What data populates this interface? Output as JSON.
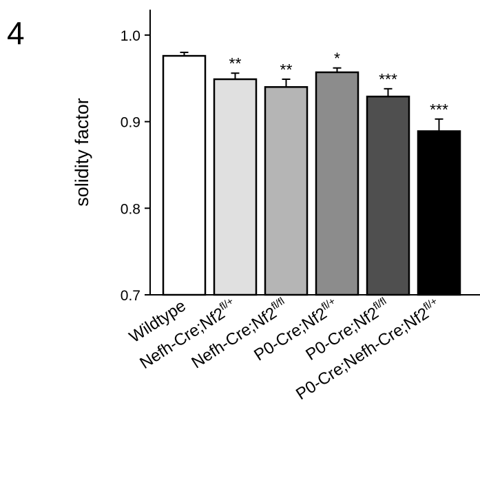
{
  "panel_label": "4",
  "chart_data": {
    "type": "bar",
    "title": "",
    "xlabel": "",
    "ylabel": "solidity factor",
    "ylim": [
      0.7,
      1.03
    ],
    "yticks": [
      0.7,
      0.8,
      0.9,
      1.0
    ],
    "ytick_labels": [
      "0.7",
      "0.8",
      "0.9",
      "1.0"
    ],
    "grid": false,
    "legend": "none",
    "categories": [
      "Wildtype",
      "Nefh-Cre;Nf2fl/+",
      "Nefh-Cre;Nf2fl/fl",
      "P0-Cre;Nf2fl/+",
      "P0-Cre;Nf2fl/fl",
      "P0-Cre;Nefh-Cre;Nf2fl/+"
    ],
    "category_labels": [
      {
        "base": "Wildtype",
        "sup": ""
      },
      {
        "base": "Nefh-Cre;Nf2",
        "sup": "fl/+"
      },
      {
        "base": "Nefh-Cre;Nf2",
        "sup": "fl/fl"
      },
      {
        "base": "P0-Cre;Nf2",
        "sup": "fl/+"
      },
      {
        "base": "P0-Cre;Nf2",
        "sup": "fl/fl"
      },
      {
        "base": "P0-Cre;Nefh-Cre;Nf2",
        "sup": "fl/+"
      }
    ],
    "values": [
      0.976,
      0.949,
      0.94,
      0.957,
      0.929,
      0.889
    ],
    "errors": [
      0.004,
      0.007,
      0.009,
      0.005,
      0.009,
      0.014
    ],
    "significance": [
      "",
      "**",
      "**",
      "*",
      "***",
      "***"
    ],
    "bar_colors": [
      "#ffffff",
      "#e0e0e0",
      "#b5b5b5",
      "#8c8c8c",
      "#4f4f4f",
      "#000000"
    ]
  }
}
